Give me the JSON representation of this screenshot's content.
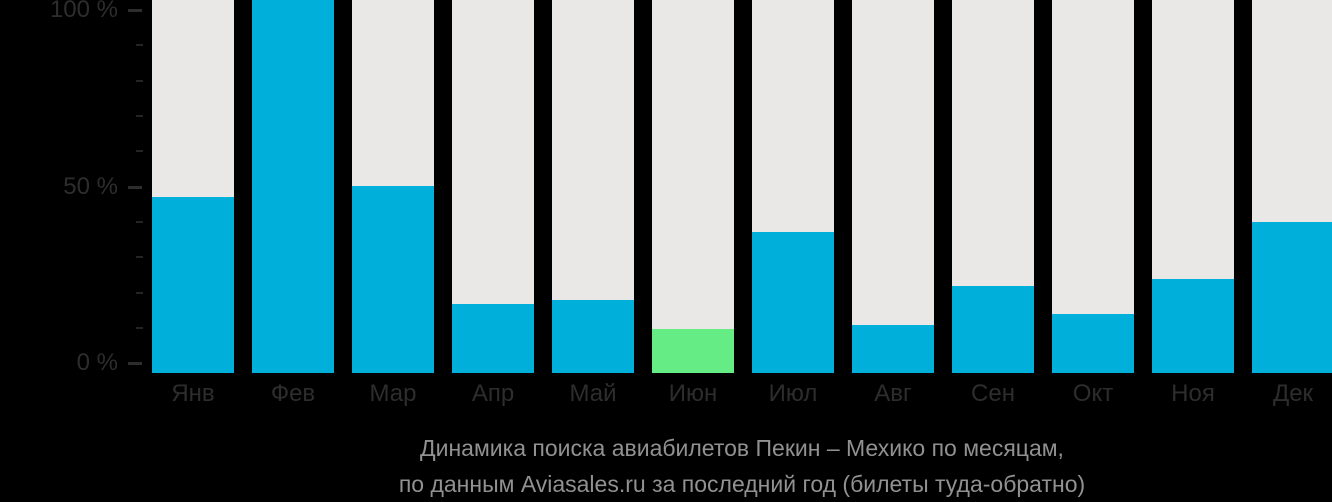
{
  "chart_data": {
    "type": "bar",
    "title": "Динамика поиска авиабилетов Пекин – Мехико по месяцам,",
    "subtitle": "по данным Aviasales.ru за последний год (билеты туда-обратно)",
    "categories": [
      "Янв",
      "Фев",
      "Мар",
      "Апр",
      "Май",
      "Июн",
      "Июл",
      "Авг",
      "Сен",
      "Окт",
      "Ноя",
      "Дек"
    ],
    "values": [
      47,
      100,
      50,
      17,
      18,
      10,
      37,
      11,
      22,
      14,
      24,
      40
    ],
    "unit": "%",
    "highlighted_category": "Июн",
    "xlabel": "",
    "ylabel": "",
    "ylim": [
      0,
      100
    ],
    "y_major_ticks": [
      0,
      50,
      100
    ],
    "y_major_tick_labels": [
      "0 %",
      "50 %",
      "100 %"
    ],
    "y_minor_tick_step": 10,
    "legend": "none",
    "grid": "off",
    "colors": {
      "background": "#000000",
      "bar": "#00AFDA",
      "bar_highlight": "#65EC85",
      "bar_track": "#E9E8E6",
      "axis_text": "#2D2D2D",
      "minor_tick": "#242424",
      "caption_text": "#919191"
    }
  }
}
